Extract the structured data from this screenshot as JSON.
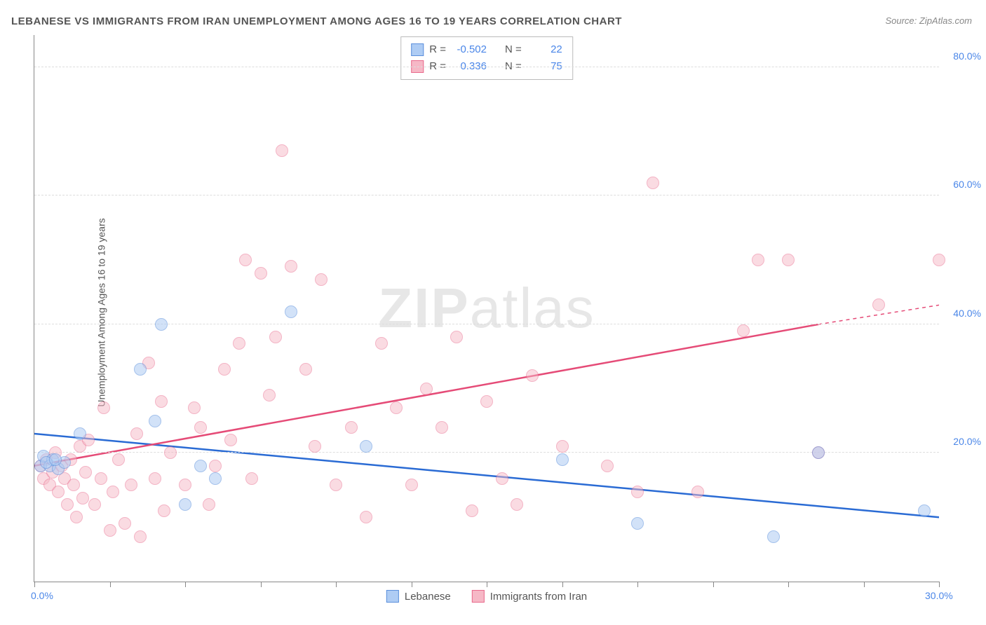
{
  "title": "LEBANESE VS IMMIGRANTS FROM IRAN UNEMPLOYMENT AMONG AGES 16 TO 19 YEARS CORRELATION CHART",
  "source": "Source: ZipAtlas.com",
  "ylabel": "Unemployment Among Ages 16 to 19 years",
  "watermark_a": "ZIP",
  "watermark_b": "atlas",
  "chart": {
    "type": "scatter",
    "xlim": [
      0,
      30
    ],
    "ylim": [
      0,
      85
    ],
    "x_ticks": [
      0,
      2.5,
      5,
      7.5,
      10,
      12.5,
      15,
      17.5,
      20,
      22.5,
      25,
      27.5,
      30
    ],
    "x_tick_labels": {
      "0": "0.0%",
      "30": "30.0%"
    },
    "y_gridlines": [
      20,
      40,
      60,
      80
    ],
    "y_tick_labels": {
      "20": "20.0%",
      "40": "40.0%",
      "60": "60.0%",
      "80": "80.0%"
    },
    "background_color": "#ffffff",
    "grid_color": "#dddddd",
    "axis_color": "#888888",
    "label_color": "#4a86e8",
    "title_color": "#555555",
    "title_fontsize": 15,
    "label_fontsize": 14,
    "marker_radius": 9,
    "marker_border": 1.5,
    "series": [
      {
        "name": "Lebanese",
        "fill": "#aeccf4",
        "stroke": "#5b8fdc",
        "fill_opacity": 0.55,
        "R": "-0.502",
        "N": "22",
        "trend": {
          "x1": 0,
          "y1": 23,
          "x2": 30,
          "y2": 10,
          "color": "#2a6bd4",
          "width": 2.5
        },
        "points": [
          [
            0.2,
            18
          ],
          [
            0.3,
            19.5
          ],
          [
            0.5,
            18
          ],
          [
            0.6,
            19
          ],
          [
            0.8,
            17.5
          ],
          [
            1.0,
            18.5
          ],
          [
            1.5,
            23
          ],
          [
            3.5,
            33
          ],
          [
            4.0,
            25
          ],
          [
            4.2,
            40
          ],
          [
            5.0,
            12
          ],
          [
            5.5,
            18
          ],
          [
            6.0,
            16
          ],
          [
            8.5,
            42
          ],
          [
            11.0,
            21
          ],
          [
            17.5,
            19
          ],
          [
            20.0,
            9
          ],
          [
            24.5,
            7
          ],
          [
            26.0,
            20
          ],
          [
            29.5,
            11
          ],
          [
            0.4,
            18.5
          ],
          [
            0.7,
            19
          ]
        ]
      },
      {
        "name": "Immigrants from Iran",
        "fill": "#f6b8c6",
        "stroke": "#e96a8c",
        "fill_opacity": 0.5,
        "R": "0.336",
        "N": "75",
        "trend": {
          "x1": 0,
          "y1": 18,
          "x2": 26,
          "y2": 40,
          "color": "#e54b77",
          "width": 2.5,
          "dash_extend_to": 30,
          "dash_y": 43
        },
        "points": [
          [
            0.2,
            18
          ],
          [
            0.3,
            16
          ],
          [
            0.4,
            19
          ],
          [
            0.5,
            15
          ],
          [
            0.6,
            17
          ],
          [
            0.7,
            20
          ],
          [
            0.8,
            14
          ],
          [
            0.9,
            18
          ],
          [
            1.0,
            16
          ],
          [
            1.1,
            12
          ],
          [
            1.2,
            19
          ],
          [
            1.3,
            15
          ],
          [
            1.4,
            10
          ],
          [
            1.5,
            21
          ],
          [
            1.6,
            13
          ],
          [
            1.7,
            17
          ],
          [
            1.8,
            22
          ],
          [
            2.0,
            12
          ],
          [
            2.2,
            16
          ],
          [
            2.3,
            27
          ],
          [
            2.5,
            8
          ],
          [
            2.6,
            14
          ],
          [
            2.8,
            19
          ],
          [
            3.0,
            9
          ],
          [
            3.2,
            15
          ],
          [
            3.4,
            23
          ],
          [
            3.5,
            7
          ],
          [
            3.8,
            34
          ],
          [
            4.0,
            16
          ],
          [
            4.2,
            28
          ],
          [
            4.3,
            11
          ],
          [
            4.5,
            20
          ],
          [
            5.0,
            15
          ],
          [
            5.3,
            27
          ],
          [
            5.5,
            24
          ],
          [
            5.8,
            12
          ],
          [
            6.0,
            18
          ],
          [
            6.3,
            33
          ],
          [
            6.5,
            22
          ],
          [
            6.8,
            37
          ],
          [
            7.0,
            50
          ],
          [
            7.2,
            16
          ],
          [
            7.5,
            48
          ],
          [
            7.8,
            29
          ],
          [
            8.0,
            38
          ],
          [
            8.2,
            67
          ],
          [
            8.5,
            49
          ],
          [
            9.0,
            33
          ],
          [
            9.3,
            21
          ],
          [
            9.5,
            47
          ],
          [
            10.0,
            15
          ],
          [
            10.5,
            24
          ],
          [
            11.0,
            10
          ],
          [
            11.5,
            37
          ],
          [
            12.0,
            27
          ],
          [
            12.5,
            15
          ],
          [
            13.0,
            30
          ],
          [
            13.5,
            24
          ],
          [
            14.0,
            38
          ],
          [
            14.5,
            11
          ],
          [
            15.0,
            28
          ],
          [
            15.5,
            16
          ],
          [
            16.0,
            12
          ],
          [
            16.5,
            32
          ],
          [
            17.5,
            21
          ],
          [
            19.0,
            18
          ],
          [
            20.0,
            14
          ],
          [
            20.5,
            62
          ],
          [
            22.0,
            14
          ],
          [
            23.5,
            39
          ],
          [
            24.0,
            50
          ],
          [
            25.0,
            50
          ],
          [
            26.0,
            20
          ],
          [
            28.0,
            43
          ],
          [
            30.0,
            50
          ]
        ]
      }
    ]
  },
  "legend": {
    "stats_label_R": "R =",
    "stats_label_N": "N =",
    "bottom": [
      {
        "label": "Lebanese",
        "fill": "#aeccf4",
        "stroke": "#5b8fdc"
      },
      {
        "label": "Immigrants from Iran",
        "fill": "#f6b8c6",
        "stroke": "#e96a8c"
      }
    ]
  }
}
